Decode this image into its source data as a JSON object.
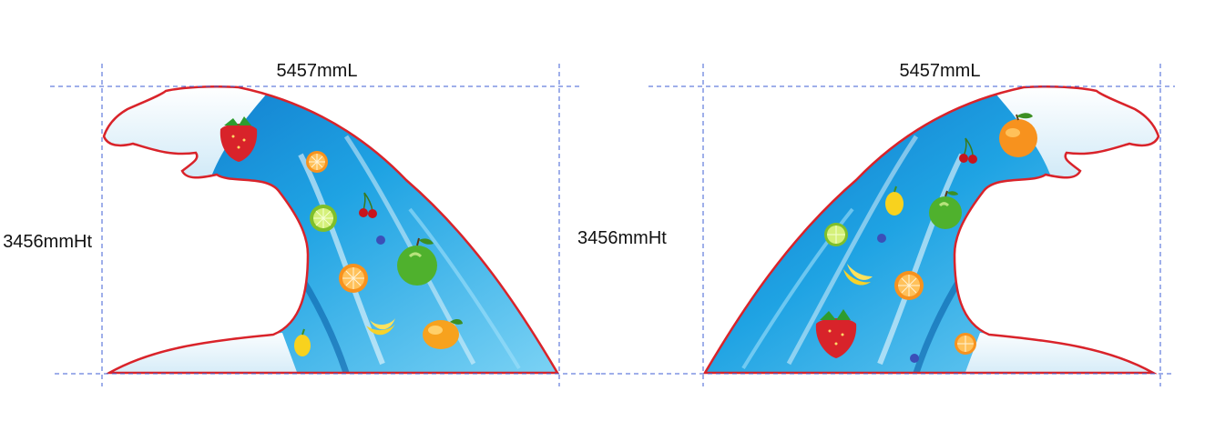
{
  "colors": {
    "guide": "#3f5fd6",
    "outline": "#d9232a",
    "water_dark": "#0f74c9",
    "water_mid": "#1fa3e3",
    "water_light": "#7fd4f5",
    "foam": "#eef7fc"
  },
  "panels": [
    {
      "name": "left-wave",
      "width_label": "5457mmL",
      "height_label": "3456mmHt",
      "fruits": [
        "strawberry-icon",
        "orange-slice-icon",
        "lime-slice-icon",
        "cherry-icon",
        "blueberry-icon",
        "green-apple-icon",
        "orange-slice-icon",
        "banana-icon",
        "mango-icon",
        "lemon-icon"
      ]
    },
    {
      "name": "right-wave",
      "width_label": "5457mmL",
      "height_label": "3456mmHt",
      "fruits": [
        "orange-icon",
        "cherry-icon",
        "lemon-icon",
        "green-apple-icon",
        "lime-slice-icon",
        "blueberry-icon",
        "banana-icon",
        "orange-slice-icon",
        "strawberry-icon",
        "orange-slice-icon",
        "blueberry-icon"
      ]
    }
  ]
}
